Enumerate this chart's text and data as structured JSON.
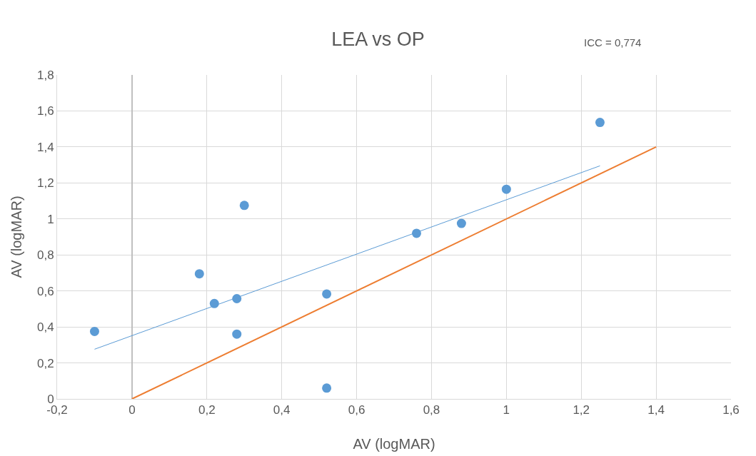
{
  "chart_data": {
    "type": "scatter",
    "title": "LEA vs OP",
    "xlabel": "AV (logMAR)",
    "ylabel": "AV (logMAR)",
    "annotations": [
      "ICC = 0,774"
    ],
    "series": [
      {
        "color": "#5b9bd5",
        "x": [
          -0.1,
          0.18,
          0.22,
          0.28,
          0.28,
          0.3,
          0.52,
          0.52,
          0.76,
          0.88,
          1.0,
          1.25
        ],
        "values": [
          0.375,
          0.695,
          0.53,
          0.557,
          0.36,
          1.075,
          0.583,
          0.06,
          0.92,
          0.975,
          1.165,
          1.536
        ]
      },
      {
        "type": "line",
        "color": "#5b9bd5",
        "x": [
          -0.1,
          1.25
        ],
        "values": [
          0.276,
          1.295
        ]
      },
      {
        "type": "line",
        "color": "#ed7d31",
        "x": [
          0,
          1.4
        ],
        "values": [
          0,
          1.4
        ]
      }
    ],
    "xlim": [
      -0.2,
      1.6
    ],
    "ylim": [
      0,
      1.8
    ],
    "xticks": [
      {
        "value": -0.2,
        "label": "-0,2"
      },
      0,
      {
        "value": 0.2,
        "label": "0,2"
      },
      {
        "value": 0.4,
        "label": "0,4"
      },
      {
        "value": 0.6,
        "label": "0,6"
      },
      {
        "value": 0.8,
        "label": "0,8"
      },
      1,
      {
        "value": 1.2,
        "label": "1,2"
      },
      {
        "value": 1.4,
        "label": "1,4"
      },
      {
        "value": 1.6,
        "label": "1,6"
      }
    ],
    "yticks": [
      0,
      {
        "value": 0.2,
        "label": "0,2"
      },
      {
        "value": 0.4,
        "label": "0,4"
      },
      {
        "value": 0.6,
        "label": "0,6"
      },
      {
        "value": 0.8,
        "label": "0,8"
      },
      1,
      {
        "value": 1.2,
        "label": "1,2"
      },
      {
        "value": 1.4,
        "label": "1,4"
      },
      {
        "value": 1.6,
        "label": "1,6"
      },
      {
        "value": 1.8,
        "label": "1,8"
      }
    ],
    "grid": true
  }
}
